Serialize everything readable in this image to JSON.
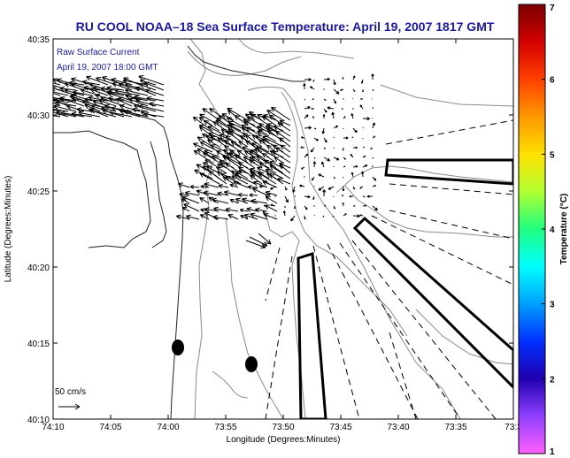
{
  "title": "RU COOL  NOAA–18  Sea Surface Temperature:  April 19, 2007 1817 GMT",
  "legend": {
    "line1": "Raw Surface Current",
    "line2": "April 19, 2007 18:00 GMT",
    "scale_label": "50 cm/s"
  },
  "x_axis": {
    "title": "Longitude (Degrees:Minutes)",
    "ticks": [
      "74:10",
      "74:05",
      "74:00",
      "73:55",
      "73:50",
      "73:45",
      "73:40",
      "73:35",
      "73:3"
    ]
  },
  "y_axis": {
    "title": "Latitude (Degrees:Minutes)",
    "ticks": [
      "40:35",
      "40:30",
      "40:25",
      "40:20",
      "40:15",
      "40:10"
    ]
  },
  "colorbar": {
    "title": "Temperature (°C)",
    "min": 1,
    "max": 7,
    "ticks": [
      "7",
      "6",
      "5",
      "4",
      "3",
      "2",
      "1"
    ],
    "colors": [
      "#7a0000",
      "#d40000",
      "#ff4000",
      "#ff9900",
      "#ffe000",
      "#b0ff30",
      "#20ff80",
      "#00ffff",
      "#00a0ff",
      "#0030ff",
      "#2000b0",
      "#9040ff",
      "#ff60ff"
    ]
  }
}
